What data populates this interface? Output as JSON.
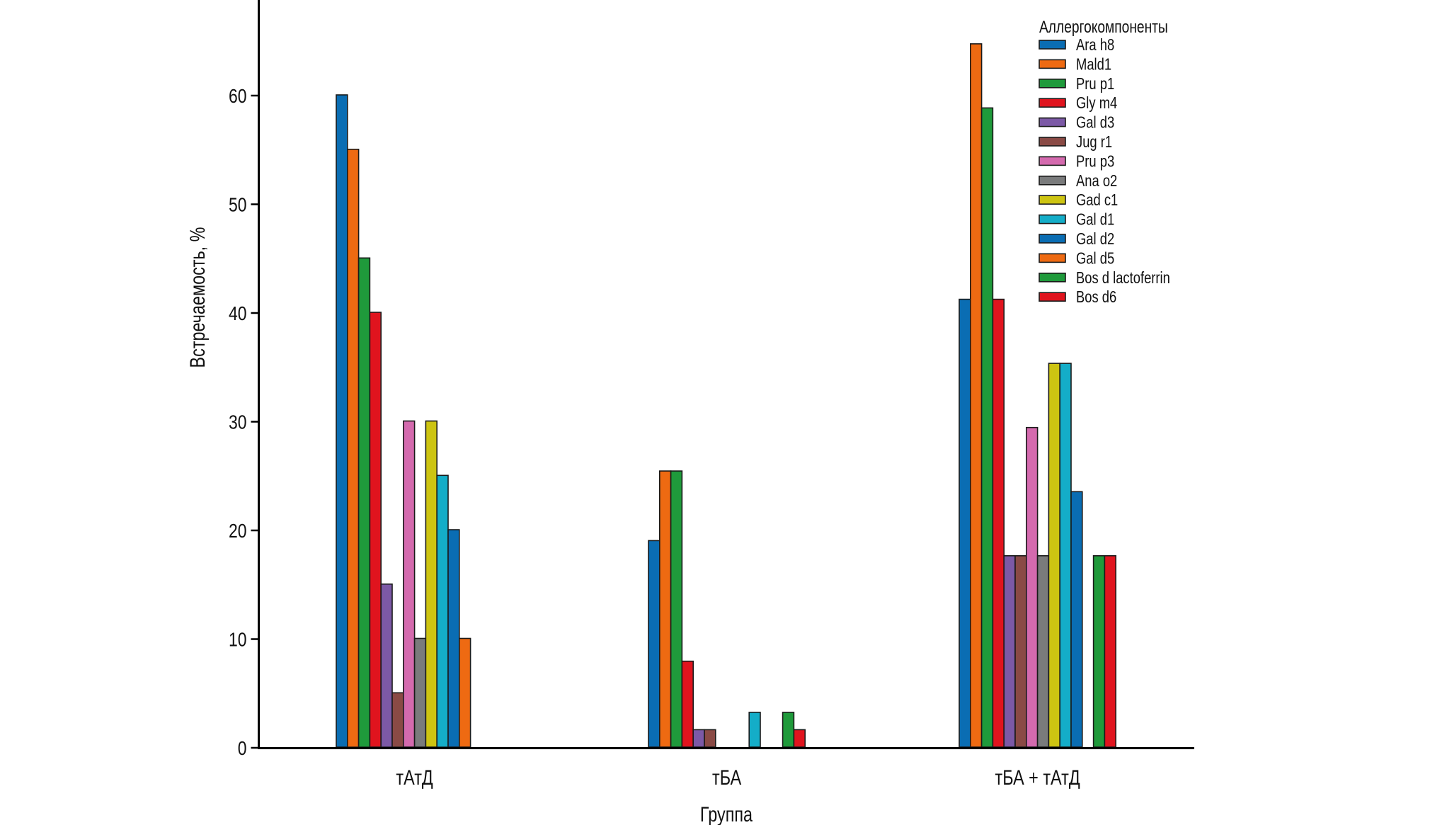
{
  "chart_data": {
    "type": "bar",
    "title": "",
    "xlabel": "Группа",
    "ylabel": "Встречаемость, %",
    "ylim": [
      0,
      68
    ],
    "yticks": [
      0,
      10,
      20,
      30,
      40,
      50,
      60
    ],
    "grid": false,
    "legend": {
      "title": "Аллергокомпоненты",
      "placement": "top-right"
    },
    "categories": [
      "тАтД",
      "тБА",
      "тБА + тАтД"
    ],
    "series": [
      {
        "name": "Ara h8",
        "color": "#0a6db3",
        "values": [
          60,
          19.0,
          41.2
        ]
      },
      {
        "name": "Mald1",
        "color": "#ee6a12",
        "values": [
          55,
          25.4,
          64.7
        ]
      },
      {
        "name": "Pru p1",
        "color": "#1f9a3b",
        "values": [
          45,
          25.4,
          58.8
        ]
      },
      {
        "name": "Gly m4",
        "color": "#e0141e",
        "values": [
          40,
          7.9,
          41.2
        ]
      },
      {
        "name": "Gal d3",
        "color": "#7c59a6",
        "values": [
          15,
          1.6,
          17.6
        ]
      },
      {
        "name": "Jug r1",
        "color": "#8a4a45",
        "values": [
          5,
          1.6,
          17.6
        ]
      },
      {
        "name": "Pru p3",
        "color": "#d46aae",
        "values": [
          30,
          0,
          29.4
        ]
      },
      {
        "name": "Ana o2",
        "color": "#7a7b7c",
        "values": [
          10,
          0,
          17.6
        ]
      },
      {
        "name": "Gad c1",
        "color": "#cdc412",
        "values": [
          30,
          0,
          35.3
        ]
      },
      {
        "name": "Gal d1",
        "color": "#14adc8",
        "values": [
          25,
          3.2,
          35.3
        ]
      },
      {
        "name": "Gal d2",
        "color": "#0a6db3",
        "values": [
          20,
          0,
          23.5
        ]
      },
      {
        "name": "Gal d5",
        "color": "#ee6a12",
        "values": [
          10,
          0,
          0
        ]
      },
      {
        "name": "Bos d lactoferrin",
        "color": "#1f9a3b",
        "values": [
          0,
          3.2,
          17.6
        ]
      },
      {
        "name": "Bos d6",
        "color": "#e0141e",
        "values": [
          0,
          1.6,
          17.6
        ]
      }
    ]
  }
}
